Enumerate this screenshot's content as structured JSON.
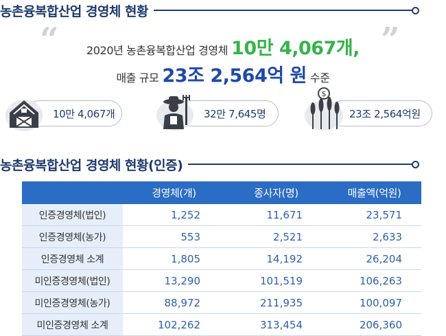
{
  "section1": {
    "title": "농촌융복합산업 경영체 현황"
  },
  "headline": {
    "line1_prefix": "2020년 농촌융복합산업 경영체",
    "line1_highlight": "10만 4,067개,",
    "line2_prefix": "매출 규모",
    "line2_highlight": "23조 2,564억 원",
    "line2_suffix": "수준",
    "quote_open": "“",
    "quote_close": "”"
  },
  "stats": [
    {
      "icon": "barn-icon",
      "value": "10만 4,067개"
    },
    {
      "icon": "farmer-icon",
      "value": "32만 7,645명"
    },
    {
      "icon": "crops-money-icon",
      "value": "23조 2,564억원"
    }
  ],
  "section2": {
    "title": "농촌융복합산업 경영체 현황(인증)"
  },
  "table": {
    "headers": [
      "",
      "경영체(개)",
      "종사자(명)",
      "매출액(억원)"
    ],
    "rows": [
      [
        "인증경영체(법인)",
        "1,252",
        "11,671",
        "23,571"
      ],
      [
        "인증경영체(농가)",
        "553",
        "2,521",
        "2,633"
      ],
      [
        "인증경영체 소계",
        "1,805",
        "14,192",
        "26,204"
      ],
      [
        "미인증경영체(법인)",
        "13,290",
        "101,519",
        "106,263"
      ],
      [
        "미인증경영체(농가)",
        "88,972",
        "211,935",
        "100,097"
      ],
      [
        "미인증경영체 소계",
        "102,262",
        "313,454",
        "206,360"
      ]
    ]
  },
  "colors": {
    "navy": "#1e3a6e",
    "green": "#35b44a",
    "blue": "#1e4aa8",
    "table_header": "#2b6cc4",
    "label_bg": "#e6eef9"
  }
}
